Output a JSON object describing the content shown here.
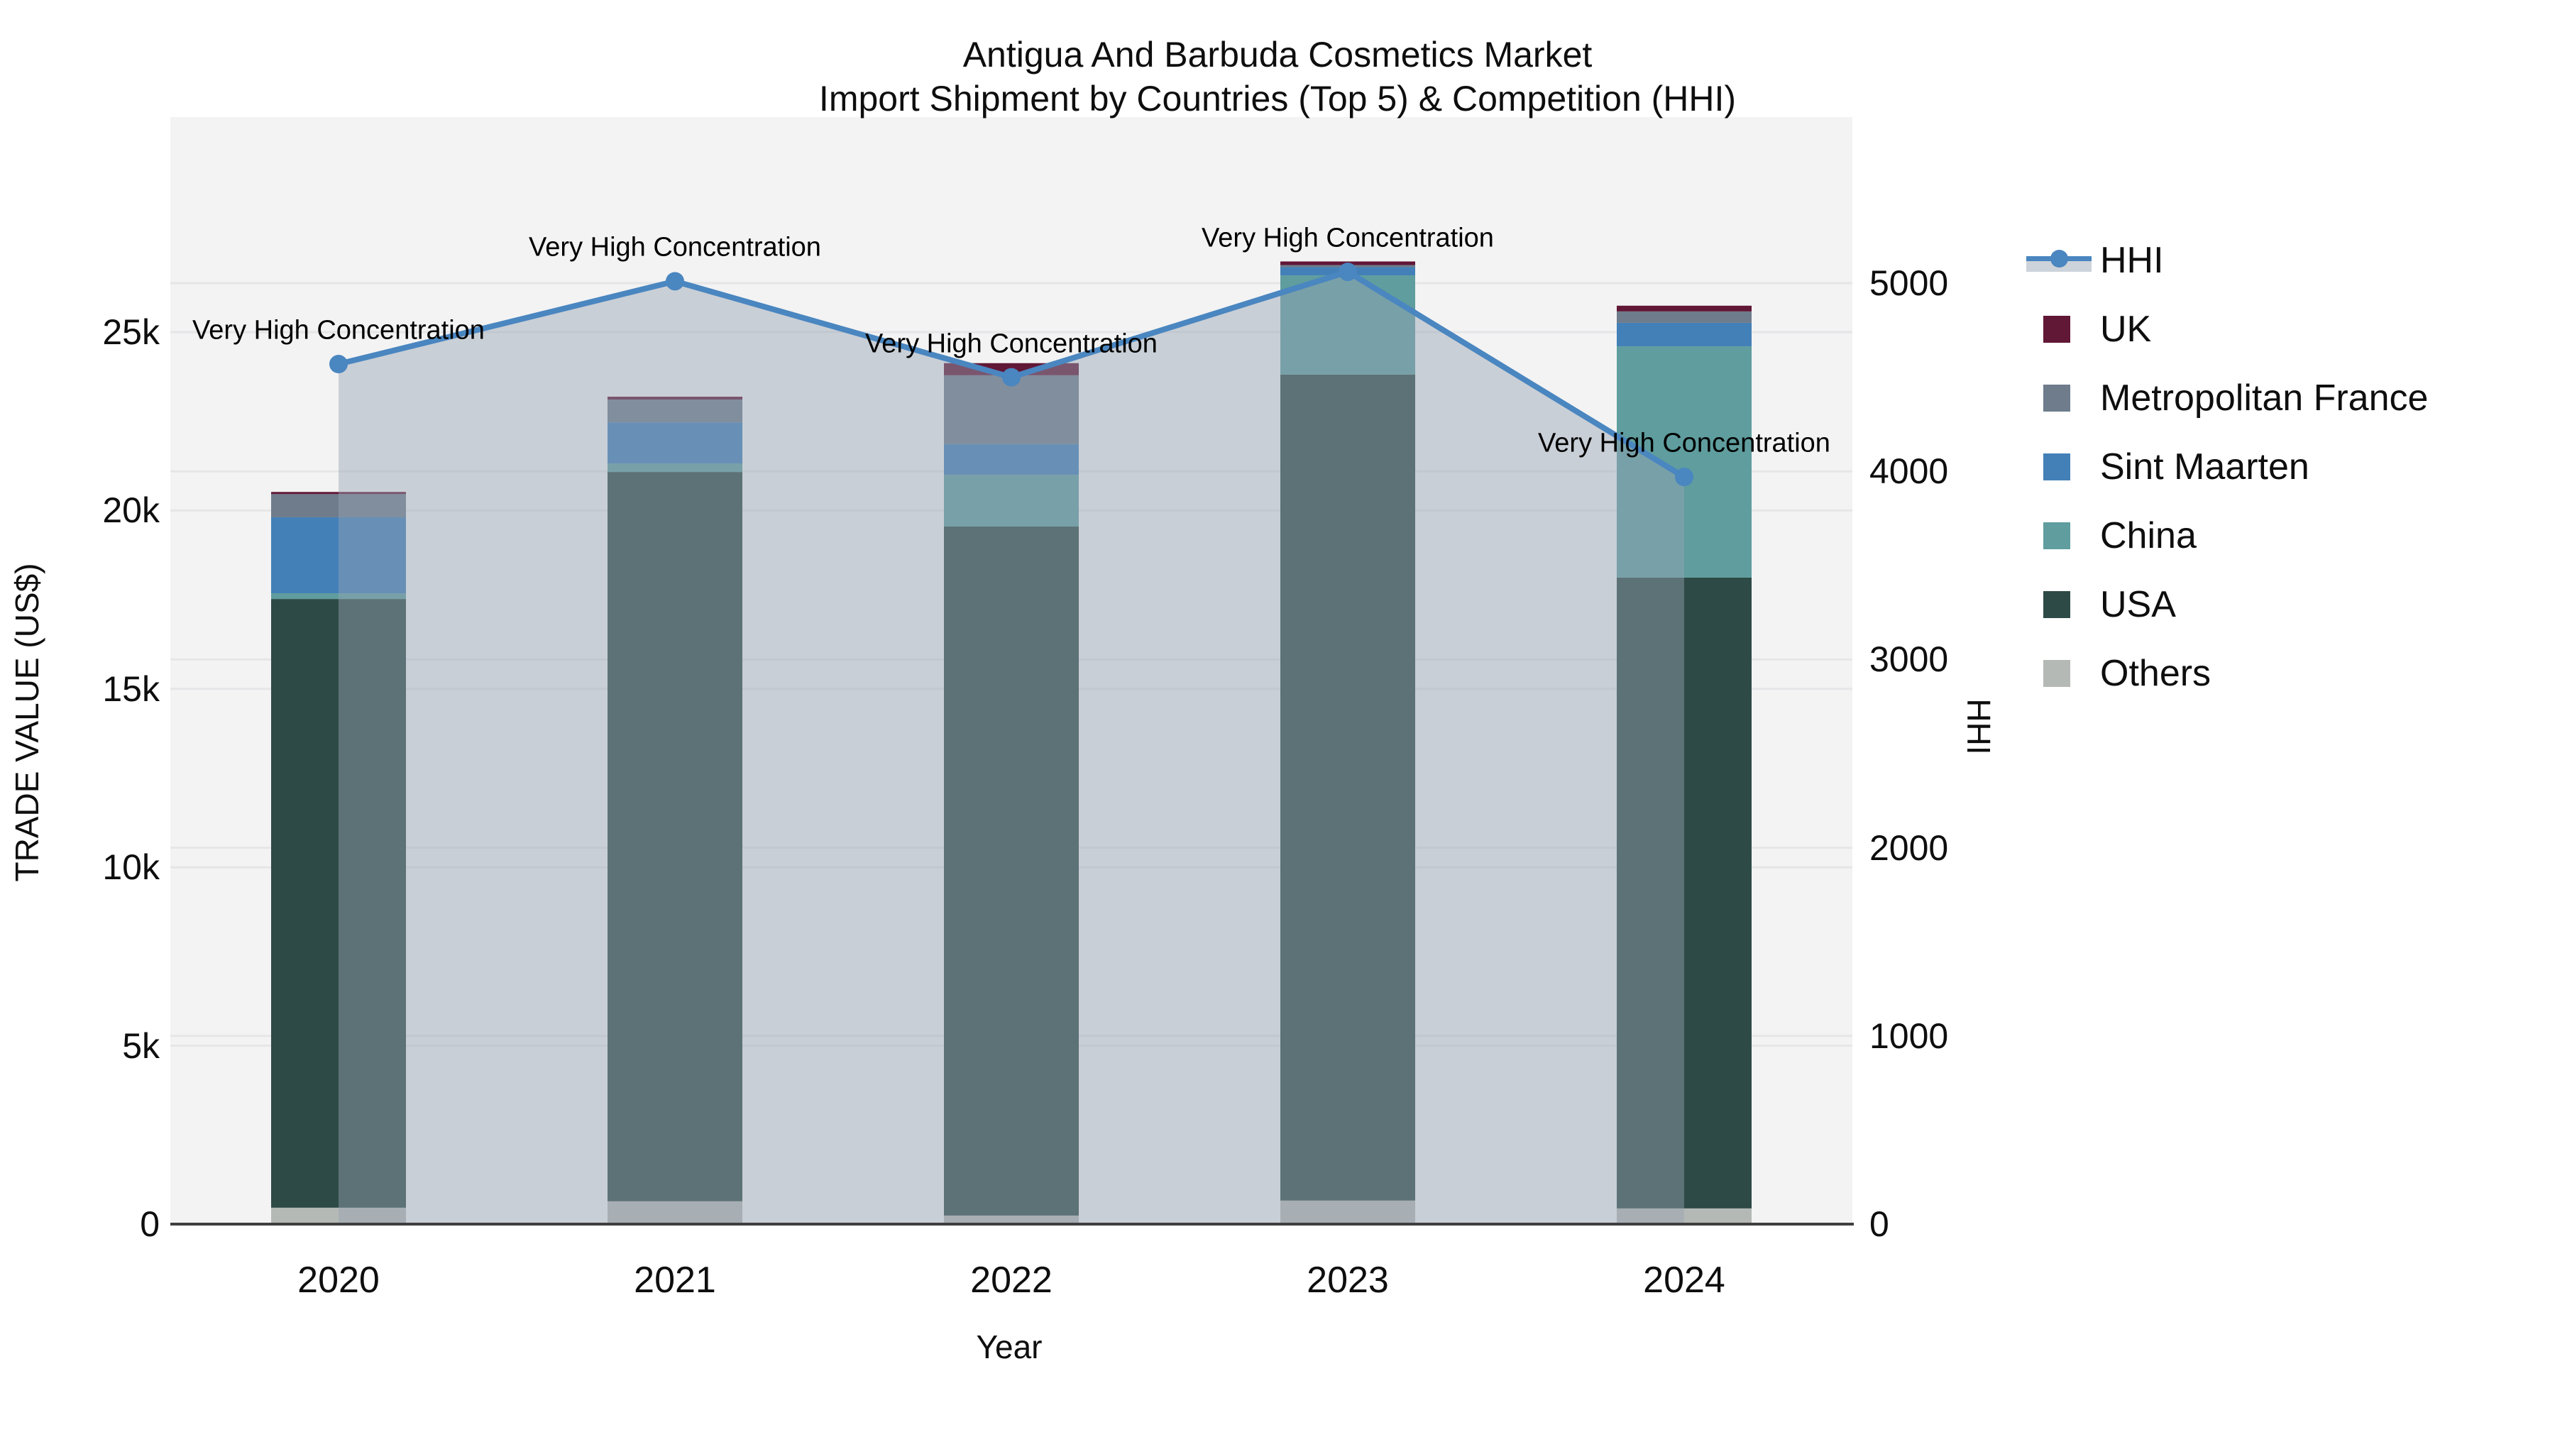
{
  "title": {
    "line1": "Antigua And Barbuda Cosmetics Market",
    "line2": "Import Shipment by Countries (Top 5) & Competition (HHI)"
  },
  "annotation_text": "Very High Concentration",
  "colors": {
    "background": "#ffffff",
    "plot_background": "#f3f3f3",
    "gridline": "#e6e6e8",
    "axis_line": "#3f3f3f",
    "hhi_line": "#4a86c0",
    "hhi_area_fill": "rgba(150,164,180,0.45)",
    "uk": "#611736",
    "metropolitan_france": "#6e7c8c",
    "sint_maarten": "#4380b8",
    "china": "#5f9d9e",
    "usa": "#2d4a46",
    "others": "#b5b9b5"
  },
  "legend": [
    {
      "label": "HHI",
      "type": "line",
      "color": "#4a86c0"
    },
    {
      "label": "UK",
      "type": "square",
      "color": "#611736"
    },
    {
      "label": "Metropolitan France",
      "type": "square",
      "color": "#6e7c8c"
    },
    {
      "label": "Sint Maarten",
      "type": "square",
      "color": "#4380b8"
    },
    {
      "label": "China",
      "type": "square",
      "color": "#5f9d9e"
    },
    {
      "label": "USA",
      "type": "square",
      "color": "#2d4a46"
    },
    {
      "label": "Others",
      "type": "square",
      "color": "#b5b9b5"
    }
  ],
  "chart_data": {
    "type": "bar",
    "subtype": "stacked-bar-with-line",
    "title": "Antigua And Barbuda Cosmetics Market Import Shipment by Countries (Top 5) & Competition (HHI)",
    "categories": [
      "2020",
      "2021",
      "2022",
      "2023",
      "2024"
    ],
    "bar_totals": [
      20520,
      23190,
      24130,
      26970,
      25740
    ],
    "series": [
      {
        "name": "Others",
        "color": "#b5b9b5",
        "values": [
          460,
          640,
          240,
          660,
          440
        ]
      },
      {
        "name": "USA",
        "color": "#2d4a46",
        "values": [
          17060,
          20440,
          19310,
          23150,
          17680
        ]
      },
      {
        "name": "China",
        "color": "#5f9d9e",
        "values": [
          160,
          240,
          1450,
          2780,
          6480
        ]
      },
      {
        "name": "Sint Maarten",
        "color": "#4380b8",
        "values": [
          2130,
          1150,
          860,
          230,
          660
        ]
      },
      {
        "name": "Metropolitan France",
        "color": "#6e7c8c",
        "values": [
          650,
          640,
          1930,
          60,
          320
        ]
      },
      {
        "name": "UK",
        "color": "#611736",
        "values": [
          60,
          80,
          340,
          100,
          160
        ]
      }
    ],
    "line_series": {
      "name": "HHI",
      "color": "#4a86c0",
      "values": [
        4570,
        5010,
        4500,
        5060,
        3970
      ],
      "annotations": [
        "Very High Concentration",
        "Very High Concentration",
        "Very High Concentration",
        "Very High Concentration",
        "Very High Concentration"
      ]
    },
    "left_axis": {
      "title": "TRADE VALUE (US$)",
      "tick_labels": [
        "0",
        "5k",
        "10k",
        "15k",
        "20k",
        "25k"
      ],
      "tick_values": [
        0,
        5000,
        10000,
        15000,
        20000,
        25000
      ],
      "range": [
        0,
        25000
      ]
    },
    "right_axis": {
      "title": "HHI",
      "tick_labels": [
        "0",
        "1000",
        "2000",
        "3000",
        "4000",
        "5000"
      ],
      "tick_values": [
        0,
        1000,
        2000,
        3000,
        4000,
        5000
      ],
      "range": [
        0,
        5000
      ]
    },
    "x_axis": {
      "title": "Year",
      "tick_labels": [
        "2020",
        "2021",
        "2022",
        "2023",
        "2024"
      ]
    },
    "legend_position": "right",
    "grid": true
  }
}
